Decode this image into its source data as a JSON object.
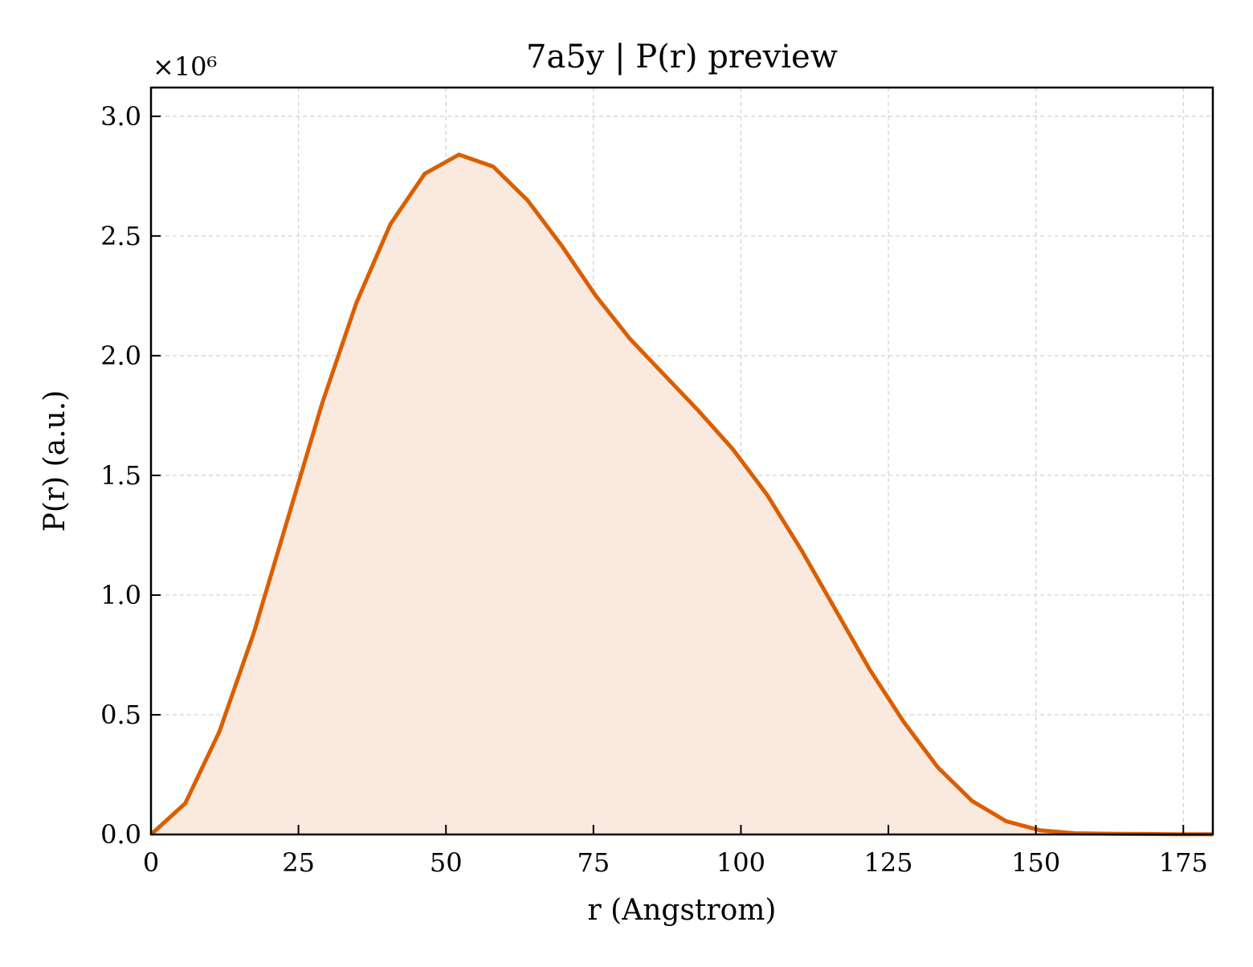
{
  "chart_data": {
    "type": "area",
    "title": "7a5y | P(r) preview",
    "xlabel": "r (Angstrom)",
    "ylabel": "P(r) (a.u.)",
    "y_multiplier_label": "×10⁶",
    "xlim": [
      0,
      180
    ],
    "ylim": [
      0,
      3.12
    ],
    "xticks": [
      0,
      25,
      50,
      75,
      100,
      125,
      150,
      175
    ],
    "yticks": [
      0.0,
      0.5,
      1.0,
      1.5,
      2.0,
      2.5,
      3.0
    ],
    "xtick_labels": [
      "0",
      "25",
      "50",
      "75",
      "100",
      "125",
      "150",
      "175"
    ],
    "ytick_labels": [
      "0.0",
      "0.5",
      "1.0",
      "1.5",
      "2.0",
      "2.5",
      "3.0"
    ],
    "grid": true,
    "line_color": "#d95f02",
    "fill_color": "#f9e9de",
    "series": [
      {
        "x": [
          0,
          5.8,
          11.6,
          17.4,
          23.2,
          29.0,
          34.8,
          40.6,
          46.4,
          52.2,
          58.0,
          63.8,
          69.6,
          75.4,
          81.2,
          87.0,
          92.8,
          98.6,
          104.4,
          110.2,
          116.0,
          121.8,
          127.6,
          133.4,
          139.2,
          145.0,
          150.8,
          156.6,
          162.4,
          168.2,
          174.0,
          180.0
        ],
        "values": [
          0.0,
          0.13,
          0.43,
          0.84,
          1.32,
          1.8,
          2.22,
          2.55,
          2.76,
          2.84,
          2.79,
          2.65,
          2.46,
          2.25,
          2.07,
          1.92,
          1.77,
          1.61,
          1.42,
          1.19,
          0.94,
          0.69,
          0.47,
          0.28,
          0.14,
          0.055,
          0.017,
          0.005,
          0.003,
          0.002,
          0.001,
          0.001
        ]
      }
    ]
  }
}
